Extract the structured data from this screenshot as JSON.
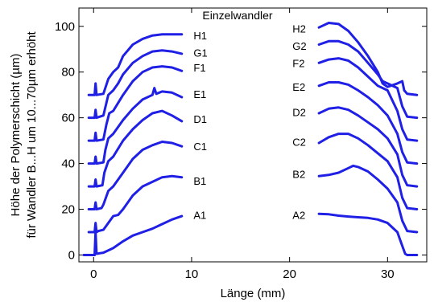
{
  "chart_data": {
    "type": "line",
    "title": "Einzelwandler",
    "xlabel": "Länge (mm)",
    "ylabel_lines": [
      "Höhe der Polymerschicht (µm)",
      "für Wandler B...H um 10...70µm erhöht"
    ],
    "xlim": [
      -1.5,
      34
    ],
    "ylim": [
      -3,
      108
    ],
    "xticks": [
      0,
      10,
      20,
      30
    ],
    "yticks": [
      0,
      20,
      40,
      60,
      80,
      100
    ],
    "grid": false,
    "line_color": "#1f1fe6",
    "series": [
      {
        "name": "A1",
        "label_at": [
          10.2,
          17.5
        ],
        "points": [
          [
            -1.0,
            0.0
          ],
          [
            0.1,
            0.0
          ],
          [
            0.2,
            10.0
          ],
          [
            0.3,
            0.5
          ],
          [
            1.0,
            1.0
          ],
          [
            2.0,
            3.0
          ],
          [
            3.0,
            6.0
          ],
          [
            4.0,
            8.5
          ],
          [
            5.0,
            10.0
          ],
          [
            6.0,
            11.5
          ],
          [
            7.0,
            13.5
          ],
          [
            8.0,
            15.5
          ],
          [
            9.0,
            17.0
          ]
        ]
      },
      {
        "name": "B1",
        "label_at": [
          10.2,
          32.5
        ],
        "points": [
          [
            -0.5,
            10.0
          ],
          [
            0.1,
            10.0
          ],
          [
            0.2,
            14.0
          ],
          [
            0.3,
            10.0
          ],
          [
            0.5,
            10.5
          ],
          [
            1.0,
            11.0
          ],
          [
            1.5,
            14.0
          ],
          [
            2.0,
            17.0
          ],
          [
            2.5,
            17.5
          ],
          [
            3.0,
            20.0
          ],
          [
            4.0,
            26.0
          ],
          [
            5.0,
            30.0
          ],
          [
            6.0,
            32.0
          ],
          [
            7.0,
            34.0
          ],
          [
            8.0,
            34.5
          ],
          [
            9.0,
            34.0
          ]
        ]
      },
      {
        "name": "C1",
        "label_at": [
          10.2,
          47.5
        ],
        "points": [
          [
            -0.5,
            20.0
          ],
          [
            0.1,
            20.0
          ],
          [
            0.2,
            23.0
          ],
          [
            0.3,
            20.0
          ],
          [
            0.8,
            20.5
          ],
          [
            1.0,
            22.0
          ],
          [
            1.5,
            28.0
          ],
          [
            2.0,
            30.0
          ],
          [
            3.0,
            36.0
          ],
          [
            4.0,
            42.0
          ],
          [
            5.0,
            46.0
          ],
          [
            6.0,
            48.0
          ],
          [
            7.0,
            49.5
          ],
          [
            8.0,
            49.0
          ],
          [
            9.0,
            47.5
          ]
        ]
      },
      {
        "name": "D1",
        "label_at": [
          10.2,
          59.5
        ],
        "points": [
          [
            -0.5,
            30.0
          ],
          [
            0.1,
            30.0
          ],
          [
            0.2,
            33.0
          ],
          [
            0.3,
            30.0
          ],
          [
            0.9,
            30.5
          ],
          [
            1.1,
            36.0
          ],
          [
            1.5,
            41.0
          ],
          [
            2.0,
            43.0
          ],
          [
            3.0,
            50.0
          ],
          [
            4.0,
            55.0
          ],
          [
            5.0,
            59.0
          ],
          [
            6.0,
            62.0
          ],
          [
            7.0,
            63.0
          ],
          [
            8.0,
            61.0
          ],
          [
            9.0,
            58.5
          ]
        ]
      },
      {
        "name": "E1",
        "label_at": [
          10.2,
          70.5
        ],
        "points": [
          [
            -0.5,
            40.0
          ],
          [
            0.1,
            40.0
          ],
          [
            0.2,
            43.0
          ],
          [
            0.3,
            40.0
          ],
          [
            1.0,
            40.5
          ],
          [
            1.2,
            46.0
          ],
          [
            1.5,
            51.0
          ],
          [
            2.0,
            53.0
          ],
          [
            3.0,
            59.0
          ],
          [
            4.0,
            64.0
          ],
          [
            5.0,
            68.0
          ],
          [
            6.0,
            70.0
          ],
          [
            6.2,
            73.0
          ],
          [
            6.4,
            70.5
          ],
          [
            7.0,
            71.5
          ],
          [
            8.0,
            71.0
          ],
          [
            9.0,
            69.0
          ]
        ]
      },
      {
        "name": "F1",
        "label_at": [
          10.2,
          82.0
        ],
        "points": [
          [
            -0.5,
            50.0
          ],
          [
            0.1,
            50.0
          ],
          [
            0.2,
            53.5
          ],
          [
            0.3,
            50.0
          ],
          [
            1.0,
            50.5
          ],
          [
            1.3,
            57.0
          ],
          [
            1.6,
            62.0
          ],
          [
            2.0,
            63.0
          ],
          [
            3.0,
            70.0
          ],
          [
            4.0,
            76.0
          ],
          [
            5.0,
            80.0
          ],
          [
            6.0,
            82.0
          ],
          [
            7.0,
            82.5
          ],
          [
            8.0,
            82.0
          ],
          [
            9.0,
            80.5
          ]
        ]
      },
      {
        "name": "G1",
        "label_at": [
          10.2,
          88.5
        ],
        "points": [
          [
            -0.5,
            60.0
          ],
          [
            0.1,
            60.0
          ],
          [
            0.2,
            63.5
          ],
          [
            0.3,
            60.0
          ],
          [
            1.0,
            61.0
          ],
          [
            1.5,
            70.0
          ],
          [
            2.0,
            72.0
          ],
          [
            2.5,
            75.0
          ],
          [
            3.0,
            79.0
          ],
          [
            4.0,
            84.0
          ],
          [
            5.0,
            87.0
          ],
          [
            6.0,
            89.0
          ],
          [
            7.0,
            89.5
          ],
          [
            8.0,
            89.0
          ],
          [
            9.0,
            88.0
          ]
        ]
      },
      {
        "name": "H1",
        "label_at": [
          10.2,
          96.0
        ],
        "points": [
          [
            -0.5,
            70.0
          ],
          [
            0.1,
            70.0
          ],
          [
            0.2,
            75.0
          ],
          [
            0.3,
            70.0
          ],
          [
            1.0,
            70.5
          ],
          [
            1.5,
            77.0
          ],
          [
            2.0,
            80.0
          ],
          [
            2.5,
            82.0
          ],
          [
            3.0,
            87.0
          ],
          [
            4.0,
            92.0
          ],
          [
            5.0,
            94.5
          ],
          [
            6.0,
            96.0
          ],
          [
            7.0,
            96.5
          ],
          [
            8.0,
            96.5
          ],
          [
            9.0,
            96.5
          ]
        ]
      },
      {
        "name": "A2",
        "label_at": [
          20.3,
          17.5
        ],
        "points": [
          [
            23.0,
            18.0
          ],
          [
            24.0,
            17.8
          ],
          [
            25.0,
            17.2
          ],
          [
            26.0,
            16.8
          ],
          [
            27.0,
            16.5
          ],
          [
            28.0,
            16.2
          ],
          [
            29.0,
            15.5
          ],
          [
            30.0,
            14.0
          ],
          [
            31.0,
            10.0
          ],
          [
            31.5,
            4.0
          ],
          [
            31.8,
            0.5
          ],
          [
            32.0,
            0.0
          ],
          [
            33.0,
            0.0
          ]
        ]
      },
      {
        "name": "B2",
        "label_at": [
          20.3,
          35.5
        ],
        "points": [
          [
            23.0,
            34.5
          ],
          [
            24.0,
            35.0
          ],
          [
            25.0,
            36.0
          ],
          [
            26.0,
            38.0
          ],
          [
            26.5,
            39.0
          ],
          [
            27.0,
            38.5
          ],
          [
            28.0,
            36.5
          ],
          [
            29.0,
            33.0
          ],
          [
            30.0,
            29.0
          ],
          [
            31.0,
            23.0
          ],
          [
            31.5,
            15.0
          ],
          [
            32.0,
            10.5
          ],
          [
            33.0,
            10.0
          ]
        ]
      },
      {
        "name": "C2",
        "label_at": [
          20.3,
          49.5
        ],
        "points": [
          [
            23.0,
            49.0
          ],
          [
            24.0,
            51.5
          ],
          [
            25.0,
            53.0
          ],
          [
            26.0,
            53.0
          ],
          [
            27.0,
            51.0
          ],
          [
            28.0,
            48.0
          ],
          [
            29.0,
            44.5
          ],
          [
            30.0,
            41.0
          ],
          [
            31.0,
            34.0
          ],
          [
            31.5,
            25.0
          ],
          [
            32.0,
            20.5
          ],
          [
            33.0,
            20.0
          ]
        ]
      },
      {
        "name": "D2",
        "label_at": [
          20.3,
          62.5
        ],
        "points": [
          [
            23.0,
            62.0
          ],
          [
            24.0,
            64.0
          ],
          [
            25.0,
            64.5
          ],
          [
            26.0,
            63.5
          ],
          [
            27.0,
            61.0
          ],
          [
            28.0,
            58.0
          ],
          [
            29.0,
            55.0
          ],
          [
            30.0,
            51.0
          ],
          [
            31.0,
            44.0
          ],
          [
            31.5,
            35.0
          ],
          [
            32.0,
            30.5
          ],
          [
            33.0,
            30.0
          ]
        ]
      },
      {
        "name": "E2",
        "label_at": [
          20.3,
          73.5
        ],
        "points": [
          [
            23.0,
            74.0
          ],
          [
            24.0,
            75.5
          ],
          [
            25.0,
            75.5
          ],
          [
            26.0,
            74.5
          ],
          [
            27.0,
            72.0
          ],
          [
            28.0,
            69.0
          ],
          [
            29.0,
            65.5
          ],
          [
            30.0,
            61.0
          ],
          [
            31.0,
            53.0
          ],
          [
            31.5,
            45.0
          ],
          [
            32.0,
            40.5
          ],
          [
            33.0,
            40.0
          ]
        ]
      },
      {
        "name": "F2",
        "label_at": [
          20.3,
          84.0
        ],
        "points": [
          [
            23.0,
            84.0
          ],
          [
            24.0,
            85.5
          ],
          [
            25.0,
            86.0
          ],
          [
            26.0,
            85.0
          ],
          [
            27.0,
            82.0
          ],
          [
            28.0,
            78.0
          ],
          [
            29.0,
            74.0
          ],
          [
            30.0,
            72.0
          ],
          [
            31.0,
            63.0
          ],
          [
            31.5,
            55.0
          ],
          [
            32.0,
            50.5
          ],
          [
            33.0,
            50.0
          ]
        ]
      },
      {
        "name": "G2",
        "label_at": [
          20.3,
          91.5
        ],
        "points": [
          [
            23.0,
            92.0
          ],
          [
            24.0,
            93.5
          ],
          [
            25.0,
            93.5
          ],
          [
            26.0,
            92.0
          ],
          [
            27.0,
            89.0
          ],
          [
            28.0,
            84.0
          ],
          [
            29.0,
            79.0
          ],
          [
            29.5,
            76.0
          ],
          [
            30.0,
            75.0
          ],
          [
            31.0,
            73.0
          ],
          [
            31.5,
            65.0
          ],
          [
            32.0,
            60.5
          ],
          [
            33.0,
            60.0
          ]
        ]
      },
      {
        "name": "H2",
        "label_at": [
          20.3,
          99.0
        ],
        "points": [
          [
            23.0,
            99.5
          ],
          [
            24.0,
            101.5
          ],
          [
            25.0,
            101.0
          ],
          [
            26.0,
            98.0
          ],
          [
            27.0,
            93.0
          ],
          [
            28.0,
            87.0
          ],
          [
            29.0,
            80.0
          ],
          [
            29.5,
            75.0
          ],
          [
            30.0,
            73.5
          ],
          [
            31.0,
            75.0
          ],
          [
            31.5,
            76.0
          ],
          [
            31.7,
            72.0
          ],
          [
            32.0,
            70.5
          ],
          [
            33.0,
            70.0
          ]
        ]
      }
    ]
  }
}
